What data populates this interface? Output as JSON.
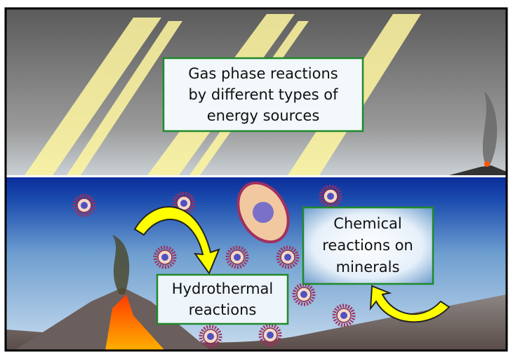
{
  "labels": {
    "gas_phase": {
      "lines": [
        "Gas phase reactions",
        "by different types of",
        "energy sources"
      ]
    },
    "hydrothermal": {
      "lines": [
        "Hydrothermal",
        "reactions"
      ]
    },
    "minerals": {
      "lines": [
        "Chemical",
        "reactions on",
        "minerals"
      ]
    }
  }
}
